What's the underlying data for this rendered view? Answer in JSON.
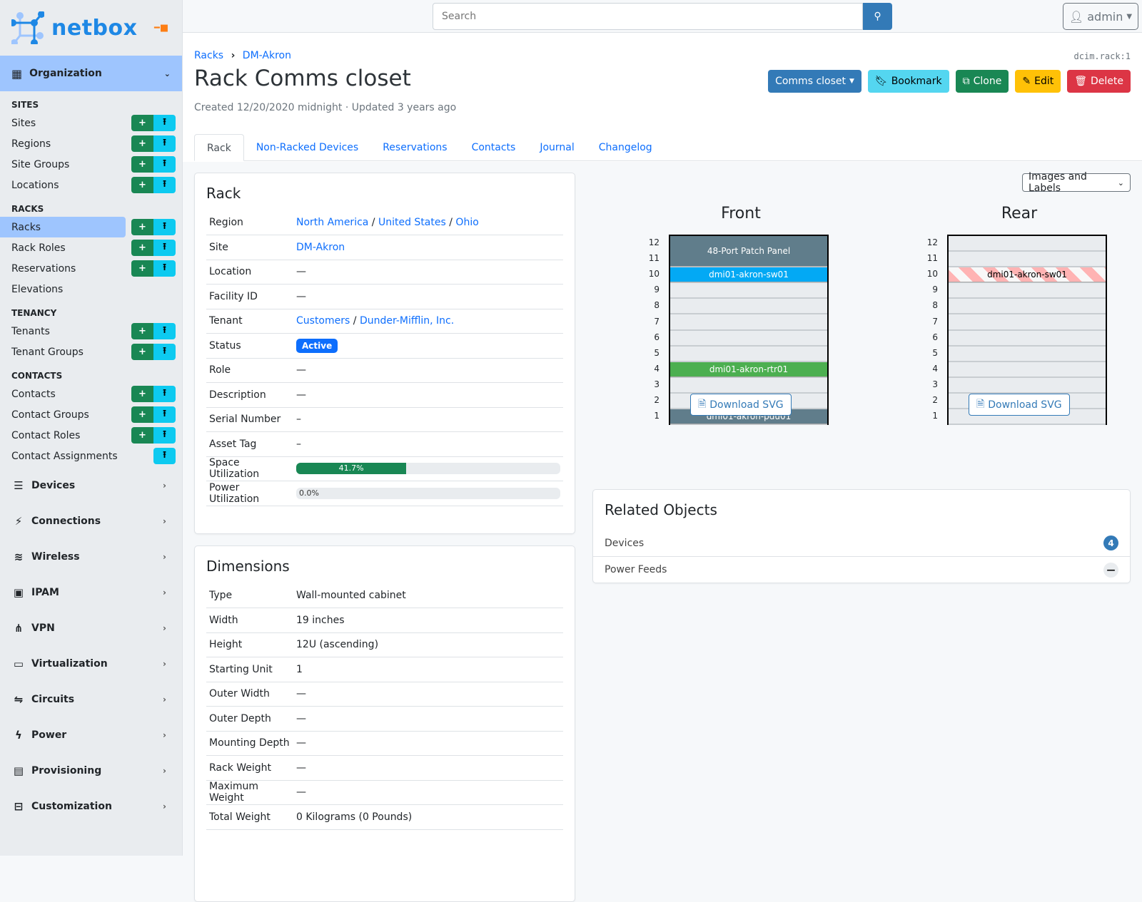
{
  "brand": {
    "name": "netbox",
    "accent": "#1e88e5"
  },
  "sidebar": {
    "section": "Organization",
    "groups": [
      {
        "title": "SITES",
        "items": [
          {
            "label": "Sites",
            "add": true,
            "import": true
          },
          {
            "label": "Regions",
            "add": true,
            "import": true
          },
          {
            "label": "Site Groups",
            "add": true,
            "import": true
          },
          {
            "label": "Locations",
            "add": true,
            "import": true
          }
        ]
      },
      {
        "title": "RACKS",
        "items": [
          {
            "label": "Racks",
            "add": true,
            "import": true,
            "active": true
          },
          {
            "label": "Rack Roles",
            "add": true,
            "import": true
          },
          {
            "label": "Reservations",
            "add": true,
            "import": true
          },
          {
            "label": "Elevations",
            "add": false,
            "import": false
          }
        ]
      },
      {
        "title": "TENANCY",
        "items": [
          {
            "label": "Tenants",
            "add": true,
            "import": true
          },
          {
            "label": "Tenant Groups",
            "add": true,
            "import": true
          }
        ]
      },
      {
        "title": "CONTACTS",
        "items": [
          {
            "label": "Contacts",
            "add": true,
            "import": true
          },
          {
            "label": "Contact Groups",
            "add": true,
            "import": true
          },
          {
            "label": "Contact Roles",
            "add": true,
            "import": true
          },
          {
            "label": "Contact Assignments",
            "add": false,
            "import": true
          }
        ]
      }
    ],
    "menus": [
      {
        "label": "Devices",
        "icon": "server-icon",
        "glyph": "☰"
      },
      {
        "label": "Connections",
        "icon": "plug-icon",
        "glyph": "⚡"
      },
      {
        "label": "Wireless",
        "icon": "wifi-icon",
        "glyph": "≋"
      },
      {
        "label": "IPAM",
        "icon": "ipam-icon",
        "glyph": "▣"
      },
      {
        "label": "VPN",
        "icon": "tree-icon",
        "glyph": "⋔"
      },
      {
        "label": "Virtualization",
        "icon": "monitor-icon",
        "glyph": "▭"
      },
      {
        "label": "Circuits",
        "icon": "circuit-icon",
        "glyph": "⇋"
      },
      {
        "label": "Power",
        "icon": "bolt-icon",
        "glyph": "ϟ"
      },
      {
        "label": "Provisioning",
        "icon": "document-icon",
        "glyph": "▤"
      },
      {
        "label": "Customization",
        "icon": "toolbox-icon",
        "glyph": "⊟"
      }
    ]
  },
  "topbar": {
    "search_placeholder": "Search",
    "user": "admin"
  },
  "page": {
    "breadcrumb": [
      "Racks",
      "DM-Akron"
    ],
    "object_id": "dcim.rack:1",
    "title": "Rack Comms closet",
    "meta": "Created 12/20/2020 midnight · Updated 3 years ago",
    "actions": {
      "dropdown": "Comms closet",
      "bookmark": "Bookmark",
      "clone": "Clone",
      "edit": "Edit",
      "delete": "Delete"
    },
    "tabs": [
      "Rack",
      "Non-Racked Devices",
      "Reservations",
      "Contacts",
      "Journal",
      "Changelog"
    ],
    "active_tab": "Rack"
  },
  "rack_card": {
    "title": "Rack",
    "region": [
      "North America",
      "United States",
      "Ohio"
    ],
    "site": "DM-Akron",
    "location": "—",
    "facility_id": "—",
    "tenant": [
      "Customers",
      "Dunder-Mifflin, Inc."
    ],
    "status": "Active",
    "role": "—",
    "description": "—",
    "serial": "–",
    "asset_tag": "–",
    "space_utilization": 41.7,
    "space_label": "41.7%",
    "power_utilization": 0.0,
    "power_label": "0.0%",
    "labels": {
      "region": "Region",
      "site": "Site",
      "location": "Location",
      "facility_id": "Facility ID",
      "tenant": "Tenant",
      "status": "Status",
      "role": "Role",
      "description": "Description",
      "serial": "Serial Number",
      "asset_tag": "Asset Tag",
      "space": "Space Utilization",
      "power": "Power Utilization"
    }
  },
  "dimensions": {
    "title": "Dimensions",
    "rows": [
      [
        "Type",
        "Wall-mounted cabinet"
      ],
      [
        "Width",
        "19 inches"
      ],
      [
        "Height",
        "12U (ascending)"
      ],
      [
        "Starting Unit",
        "1"
      ],
      [
        "Outer Width",
        "—"
      ],
      [
        "Outer Depth",
        "—"
      ],
      [
        "Mounting Depth",
        "—"
      ],
      [
        "Rack Weight",
        "—"
      ],
      [
        "Maximum Weight",
        "—"
      ],
      [
        "Total Weight",
        "0 Kilograms (0 Pounds)"
      ]
    ]
  },
  "elevation": {
    "view": "Images and Labels",
    "units": 12,
    "front": {
      "title": "Front",
      "devices": [
        {
          "name": "48-Port Patch Panel",
          "top": 12,
          "height": 2,
          "color": "#607d8b"
        },
        {
          "name": "dmi01-akron-sw01",
          "top": 10,
          "height": 1,
          "color": "#03a9f4"
        },
        {
          "name": "dmi01-akron-rtr01",
          "top": 4,
          "height": 1,
          "color": "#4caf50"
        },
        {
          "name": "dmi01-akron-pdu01",
          "top": 1,
          "height": 1,
          "color": "#607d8b"
        }
      ]
    },
    "rear": {
      "title": "Rear",
      "devices": [
        {
          "name": "dmi01-akron-sw01",
          "top": 10,
          "height": 1,
          "color": "#ffb3b3",
          "striped": true
        }
      ]
    },
    "download": "Download SVG"
  },
  "related": {
    "title": "Related Objects",
    "items": [
      {
        "label": "Devices",
        "count": "4"
      },
      {
        "label": "Power Feeds",
        "count": "—"
      }
    ]
  }
}
